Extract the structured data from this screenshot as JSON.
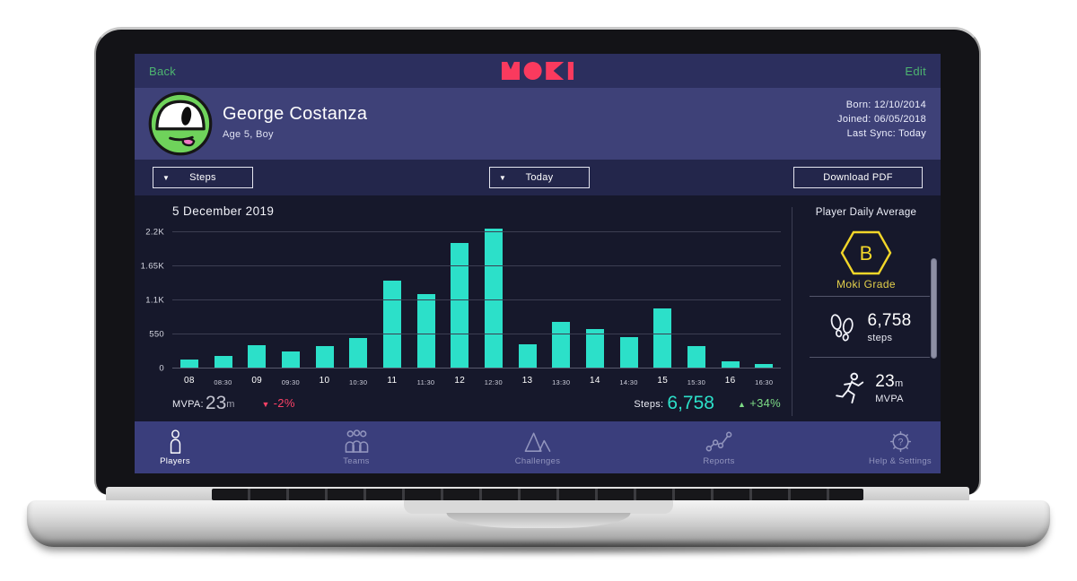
{
  "topbar": {
    "back_label": "Back",
    "edit_label": "Edit",
    "logo_text": "MOKI"
  },
  "profile": {
    "name": "George Costanza",
    "subtitle": "Age 5, Boy",
    "born": "Born: 12/10/2014",
    "joined": "Joined: 06/05/2018",
    "last_sync": "Last Sync: Today"
  },
  "filters": {
    "metric_selected": "Steps",
    "period_selected": "Today",
    "download_label": "Download PDF"
  },
  "chart_data": {
    "type": "bar",
    "title": "5 December 2019",
    "categories": [
      "08",
      "08:30",
      "09",
      "09:30",
      "10",
      "10:30",
      "11",
      "11:30",
      "12",
      "12:30",
      "13",
      "13:30",
      "14",
      "14:30",
      "15",
      "15:30",
      "16",
      "16:30"
    ],
    "values": [
      150,
      200,
      370,
      275,
      365,
      490,
      1410,
      1200,
      2030,
      2250,
      385,
      755,
      630,
      500,
      975,
      355,
      115,
      75
    ],
    "y_ticks": [
      {
        "label": "0",
        "value": 0
      },
      {
        "label": "550",
        "value": 550
      },
      {
        "label": "1.1K",
        "value": 1100
      },
      {
        "label": "1.65K",
        "value": 1650
      },
      {
        "label": "2.2K",
        "value": 2200
      }
    ],
    "ylim": [
      0,
      2400
    ],
    "xlabel": "",
    "ylabel": "",
    "grid": true,
    "legend": false,
    "bar_color": "#2ce0c9"
  },
  "stats": {
    "mvpa_label": "MVPA:",
    "mvpa_value": "23",
    "mvpa_unit": "m",
    "mvpa_change": "-2%",
    "mvpa_trend": "down",
    "steps_label": "Steps:",
    "steps_value": "6,758",
    "steps_change": "+34%",
    "steps_trend": "up"
  },
  "sidebar": {
    "heading": "Player Daily Average",
    "grade": "B",
    "grade_label": "Moki Grade",
    "steps_value": "6,758",
    "steps_unit": "steps",
    "mvpa_value": "23",
    "mvpa_value_unit": "m",
    "mvpa_label": "MVPA"
  },
  "nav": {
    "items": [
      {
        "label": "Players",
        "icon": "player-icon",
        "active": true
      },
      {
        "label": "Teams",
        "icon": "teams-icon",
        "active": false
      },
      {
        "label": "Challenges",
        "icon": "mountains-icon",
        "active": false
      },
      {
        "label": "Reports",
        "icon": "report-graph-icon",
        "active": false
      },
      {
        "label": "Help & Settings",
        "icon": "gear-question-icon",
        "active": false
      }
    ]
  },
  "icons": {
    "caret_down": "▼",
    "triangle_up": "▲",
    "triangle_down": "▼"
  },
  "colors": {
    "brand_pink": "#fa3a5e",
    "accent_teal": "#2ce0c9",
    "link_green": "#4db470",
    "positive_green": "#7ddc86",
    "negative_pink": "#fb4166",
    "grade_yellow": "#f2d629",
    "topbar_bg": "#2c2f5e",
    "profile_bg": "#3e4178",
    "filter_bg": "#23264b",
    "chart_bg": "#16182b",
    "nav_bg": "#3a3e7c",
    "avatar_green": "#6fd35b"
  }
}
